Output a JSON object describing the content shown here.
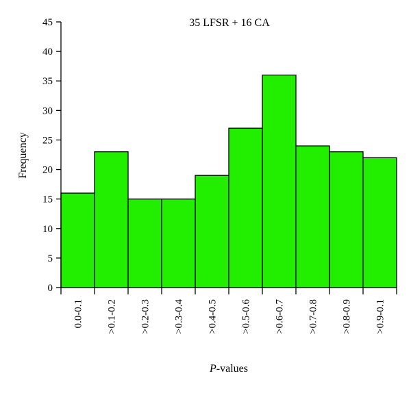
{
  "chart_data": {
    "type": "bar",
    "title": "35 LFSR + 16 CA",
    "xlabel_italic": "P",
    "xlabel_rest": "-values",
    "ylabel": "Frequency",
    "categories": [
      "0.0-0.1",
      ">0.1-0.2",
      ">0.2-0.3",
      ">0.3-0.4",
      ">0.4-0.5",
      ">0.5-0.6",
      ">0.6-0.7",
      ">0.7-0.8",
      ">0.8-0.9",
      ">0.9-0.1"
    ],
    "values": [
      16,
      23,
      15,
      15,
      19,
      27,
      36,
      24,
      23,
      22
    ],
    "ylim": [
      0,
      45
    ],
    "yticks": [
      0,
      5,
      10,
      15,
      20,
      25,
      30,
      35,
      40,
      45
    ],
    "grid": false,
    "bar_color": "#22ee00",
    "edge_color": "#000000"
  }
}
